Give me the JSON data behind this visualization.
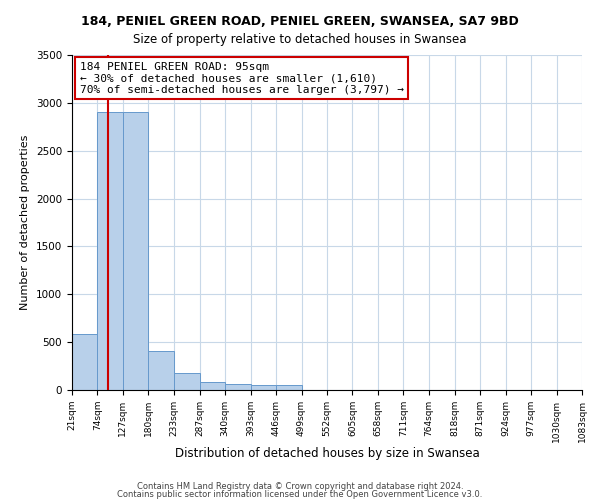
{
  "title": "184, PENIEL GREEN ROAD, PENIEL GREEN, SWANSEA, SA7 9BD",
  "subtitle": "Size of property relative to detached houses in Swansea",
  "xlabel": "Distribution of detached houses by size in Swansea",
  "ylabel": "Number of detached properties",
  "bar_edges": [
    21,
    74,
    127,
    180,
    233,
    287,
    340,
    393,
    446,
    499,
    552,
    605,
    658,
    711,
    764,
    818,
    871,
    924,
    977,
    1030,
    1083
  ],
  "bar_heights": [
    580,
    2900,
    2900,
    410,
    175,
    85,
    65,
    55,
    50,
    0,
    0,
    0,
    0,
    0,
    0,
    0,
    0,
    0,
    0,
    0
  ],
  "bar_color": "#b8d0ea",
  "bar_edgecolor": "#6699cc",
  "vline_x": 95,
  "vline_color": "#cc0000",
  "ylim": [
    0,
    3500
  ],
  "yticks": [
    0,
    500,
    1000,
    1500,
    2000,
    2500,
    3000,
    3500
  ],
  "annotation_text": "184 PENIEL GREEN ROAD: 95sqm\n← 30% of detached houses are smaller (1,610)\n70% of semi-detached houses are larger (3,797) →",
  "annotation_box_edgecolor": "#cc0000",
  "annotation_box_facecolor": "#ffffff",
  "footer1": "Contains HM Land Registry data © Crown copyright and database right 2024.",
  "footer2": "Contains public sector information licensed under the Open Government Licence v3.0.",
  "background_color": "#ffffff",
  "grid_color": "#c8d8e8",
  "tick_labels": [
    "21sqm",
    "74sqm",
    "127sqm",
    "180sqm",
    "233sqm",
    "287sqm",
    "340sqm",
    "393sqm",
    "446sqm",
    "499sqm",
    "552sqm",
    "605sqm",
    "658sqm",
    "711sqm",
    "764sqm",
    "818sqm",
    "871sqm",
    "924sqm",
    "977sqm",
    "1030sqm",
    "1083sqm"
  ],
  "title_fontsize": 9,
  "subtitle_fontsize": 8.5,
  "xlabel_fontsize": 8.5,
  "ylabel_fontsize": 8,
  "tick_fontsize": 6.5,
  "ytick_fontsize": 7.5,
  "annotation_fontsize": 8,
  "footer_fontsize": 6
}
